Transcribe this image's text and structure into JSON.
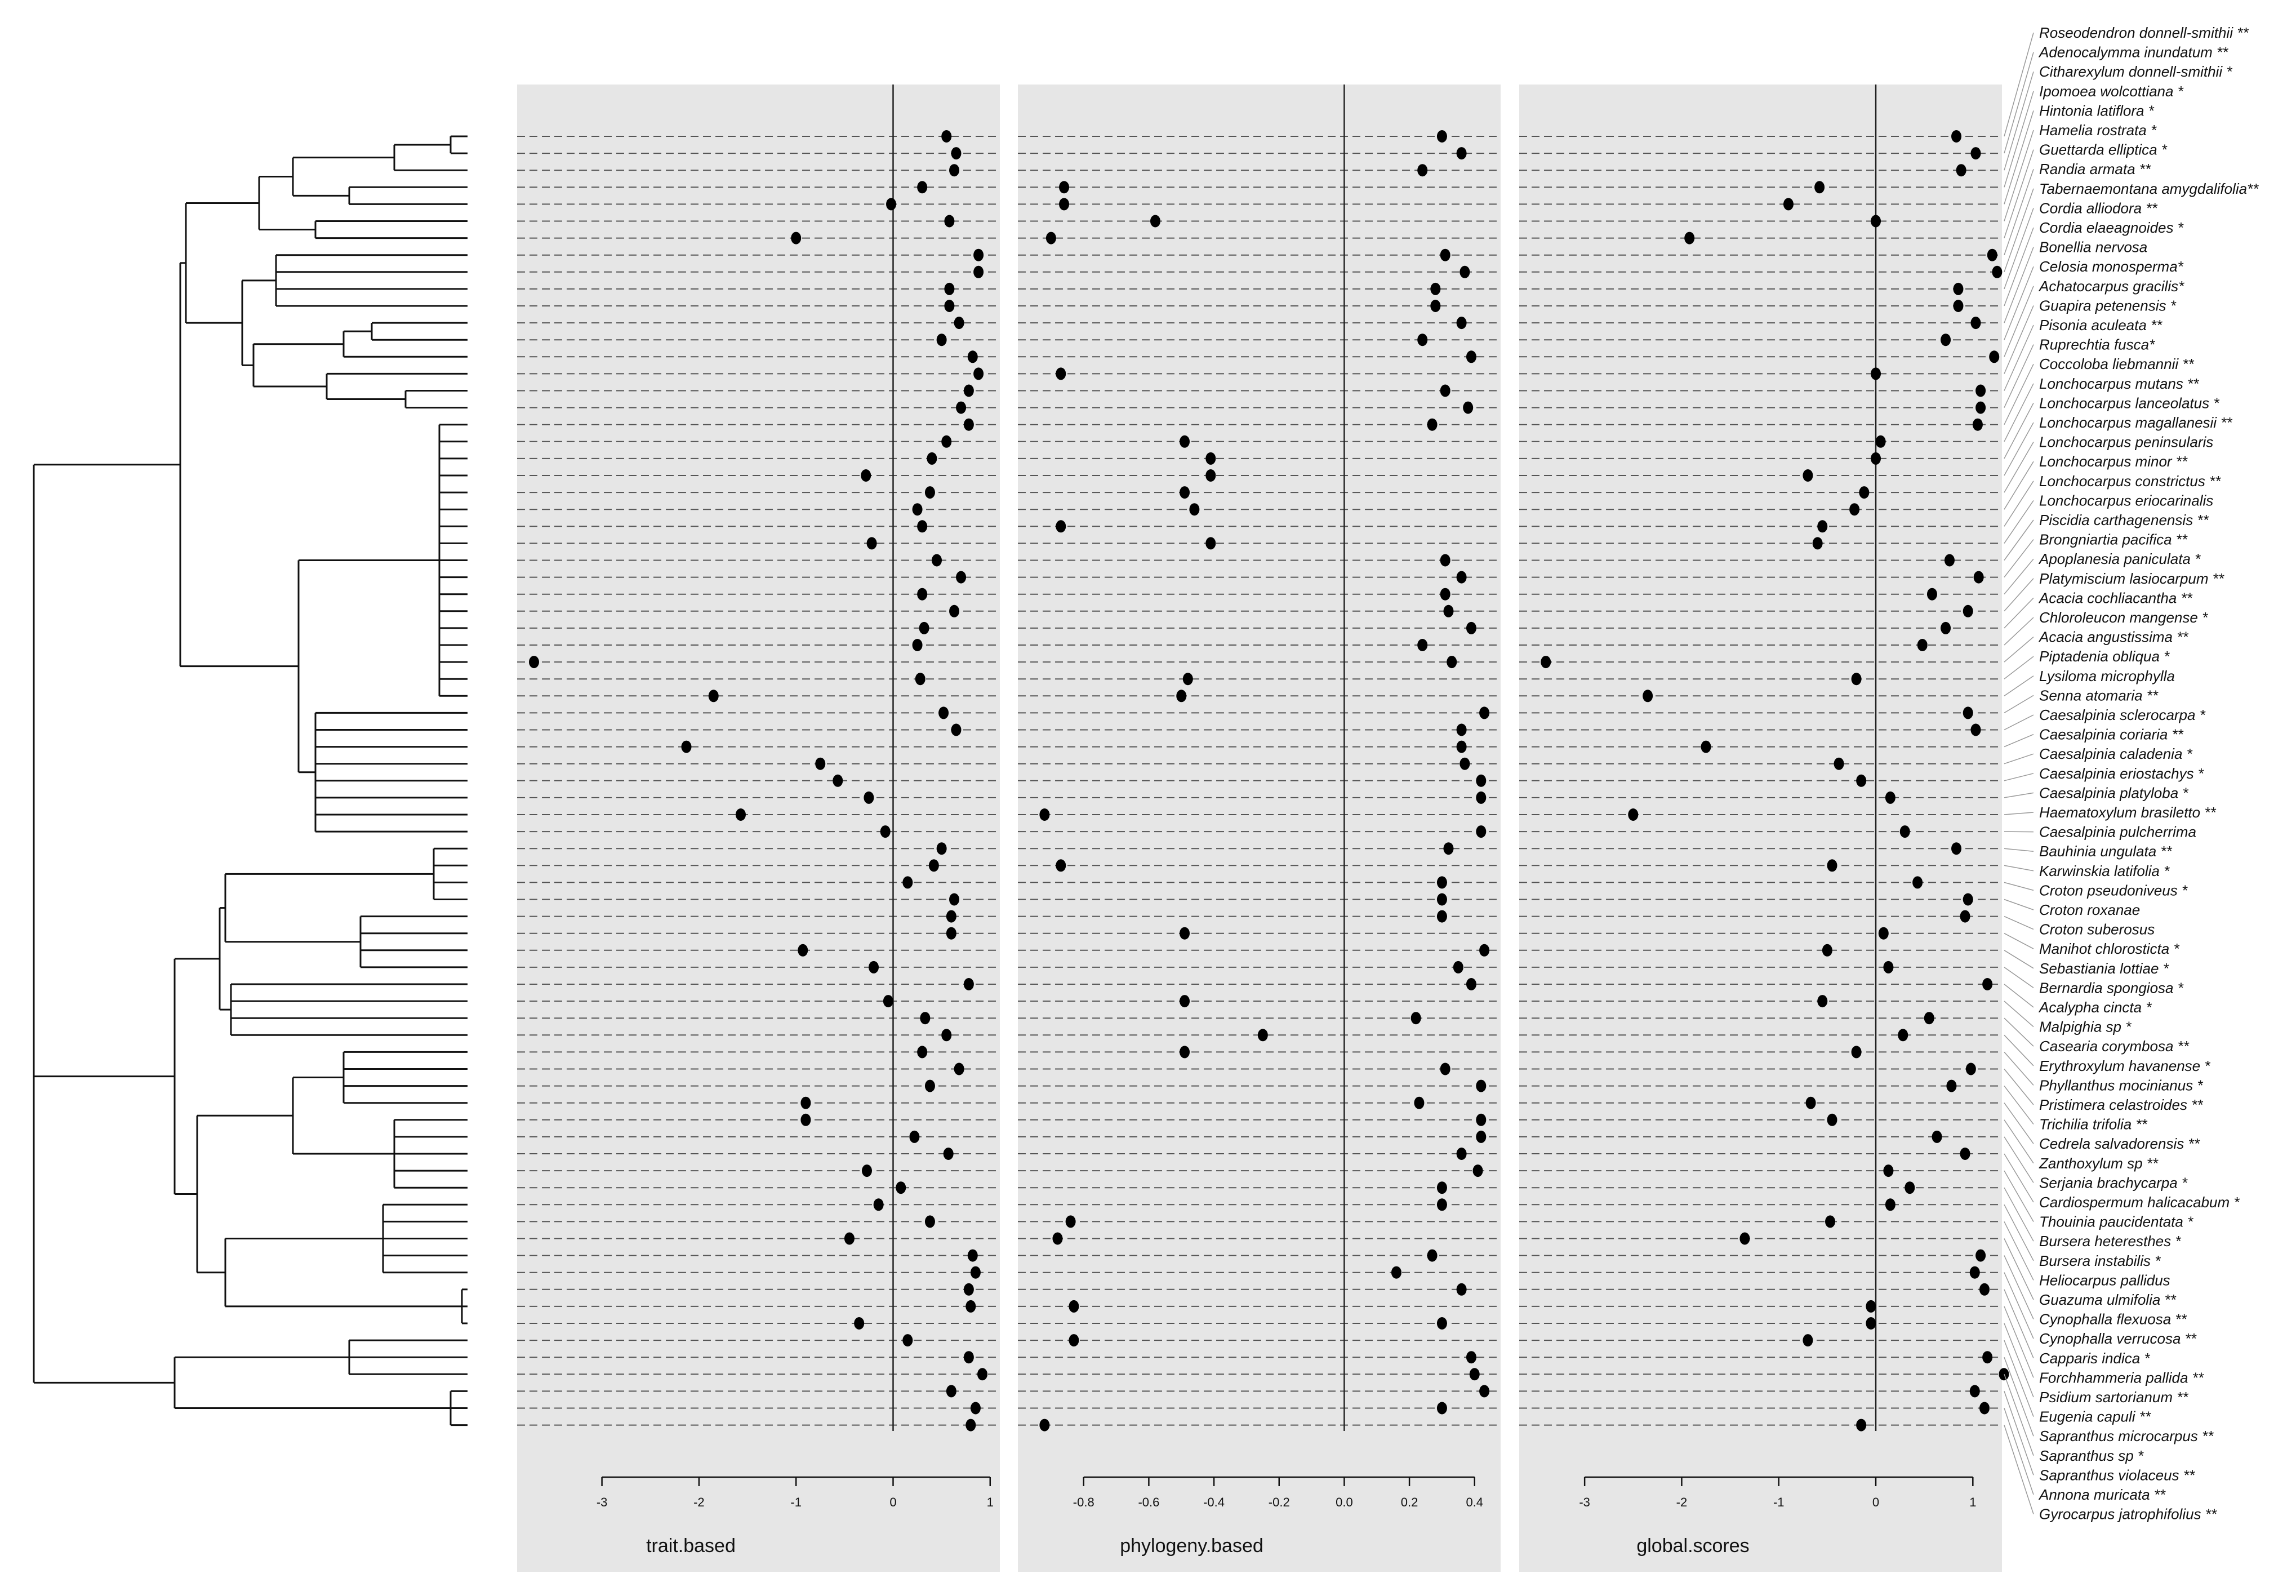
{
  "chart_data": {
    "type": "scatter",
    "species": [
      "Roseodendron donnell-smithii **",
      "Adenocalymma inundatum **",
      "Citharexylum donnell-smithii *",
      "Ipomoea wolcottiana *",
      "Hintonia latiflora *",
      "Hamelia rostrata *",
      "Guettarda elliptica *",
      "Randia armata **",
      "Tabernaemontana amygdalifolia**",
      "Cordia alliodora **",
      "Cordia elaeagnoides *",
      "Bonellia nervosa",
      "Celosia monosperma*",
      "Achatocarpus gracilis*",
      "Guapira petenensis *",
      "Pisonia aculeata **",
      "Ruprechtia fusca*",
      "Coccoloba liebmannii **",
      "Lonchocarpus mutans **",
      "Lonchocarpus lanceolatus *",
      "Lonchocarpus magallanesii **",
      "Lonchocarpus peninsularis",
      "Lonchocarpus minor **",
      "Lonchocarpus constrictus **",
      "Lonchocarpus eriocarinalis",
      "Piscidia carthagenensis **",
      "Brongniartia pacifica **",
      "Apoplanesia paniculata *",
      "Platymiscium lasiocarpum **",
      "Acacia cochliacantha **",
      "Chloroleucon mangense *",
      "Acacia angustissima **",
      "Piptadenia obliqua *",
      "Lysiloma microphylla",
      "Senna atomaria **",
      "Caesalpinia sclerocarpa *",
      "Caesalpinia coriaria **",
      "Caesalpinia caladenia *",
      "Caesalpinia eriostachys *",
      "Caesalpinia platyloba *",
      "Haematoxylum brasiletto **",
      "Caesalpinia pulcherrima",
      "Bauhinia ungulata **",
      "Karwinskia latifolia *",
      "Croton pseudoniveus *",
      "Croton roxanae",
      "Croton suberosus",
      "Manihot chlorosticta *",
      "Sebastiania lottiae *",
      "Bernardia spongiosa *",
      "Acalypha cincta *",
      "Malpighia sp *",
      "Casearia corymbosa **",
      "Erythroxylum havanense *",
      "Phyllanthus mocinianus *",
      "Pristimera celastroides **",
      "Trichilia trifolia **",
      "Cedrela salvadorensis **",
      "Zanthoxylum sp **",
      "Serjania brachycarpa *",
      "Cardiospermum halicacabum *",
      "Thouinia paucidentata *",
      "Bursera heteresthes *",
      "Bursera instabilis *",
      "Heliocarpus pallidus",
      "Guazuma ulmifolia **",
      "Cynophalla flexuosa **",
      "Cynophalla verrucosa **",
      "Capparis indica *",
      "Forchhammeria pallida **",
      "Psidium sartorianum **",
      "Eugenia capuli **",
      "Sapranthus microcarpus **",
      "Sapranthus sp *",
      "Sapranthus violaceus **",
      "Annona muricata **",
      "Gyrocarpus jatrophifolius **"
    ],
    "panels": [
      {
        "xlabel": "trait.based",
        "xlim": [
          -3.7,
          1.1
        ],
        "ticks": [
          "-3",
          "-2",
          "-1",
          "0",
          "1"
        ],
        "values": [
          0.55,
          0.65,
          0.63,
          0.3,
          -0.02,
          0.58,
          -1.0,
          0.88,
          0.88,
          0.58,
          0.58,
          0.68,
          0.5,
          0.82,
          0.88,
          0.78,
          0.7,
          0.78,
          0.55,
          0.4,
          -0.28,
          0.38,
          0.25,
          0.3,
          -0.22,
          0.45,
          0.7,
          0.3,
          0.63,
          0.32,
          0.25,
          -3.7,
          0.28,
          -1.85,
          0.52,
          0.65,
          -2.13,
          -0.75,
          -0.57,
          -0.25,
          -1.57,
          -0.08,
          0.5,
          0.42,
          0.15,
          0.63,
          0.6,
          0.6,
          -0.93,
          -0.2,
          0.78,
          -0.05,
          0.33,
          0.55,
          0.3,
          0.68,
          0.38,
          -0.9,
          -0.9,
          0.22,
          0.57,
          -0.27,
          0.08,
          -0.15,
          0.38,
          -0.45,
          0.82,
          0.85,
          0.78,
          0.8,
          -0.35,
          0.15,
          0.78,
          0.92,
          0.6,
          0.85,
          0.8
        ]
      },
      {
        "xlabel": "phylogeny.based",
        "xlim": [
          -0.95,
          0.48
        ],
        "ticks": [
          "-0.8",
          "-0.6",
          "-0.4",
          "-0.2",
          "0.0",
          "0.2",
          "0.4"
        ],
        "values": [
          0.3,
          0.36,
          0.24,
          -0.86,
          -0.86,
          -0.58,
          -0.9,
          0.31,
          0.37,
          0.28,
          0.28,
          0.36,
          0.24,
          0.39,
          -0.87,
          0.31,
          0.38,
          0.27,
          -0.49,
          -0.41,
          -0.41,
          -0.49,
          -0.46,
          -0.87,
          -0.41,
          0.31,
          0.36,
          0.31,
          0.32,
          0.39,
          0.24,
          0.33,
          -0.48,
          -0.5,
          0.43,
          0.36,
          0.36,
          0.37,
          0.42,
          0.42,
          -0.92,
          0.42,
          0.32,
          -0.87,
          0.3,
          0.3,
          0.3,
          -0.49,
          0.43,
          0.35,
          0.39,
          -0.49,
          0.22,
          -0.25,
          -0.49,
          0.31,
          0.42,
          0.23,
          0.42,
          0.42,
          0.36,
          0.41,
          0.3,
          0.3,
          -0.84,
          -0.88,
          0.27,
          0.16,
          0.36,
          -0.83,
          0.3,
          -0.83,
          0.39,
          0.4,
          0.43,
          0.3,
          -0.92
        ]
      },
      {
        "xlabel": "global.scores",
        "xlim": [
          -3.5,
          1.3
        ],
        "ticks": [
          "-3",
          "-2",
          "-1",
          "0",
          "1"
        ],
        "values": [
          0.83,
          1.03,
          0.88,
          -0.58,
          -0.9,
          0.0,
          -1.92,
          1.2,
          1.25,
          0.85,
          0.85,
          1.03,
          0.72,
          1.22,
          0.0,
          1.08,
          1.08,
          1.05,
          0.05,
          0.0,
          -0.7,
          -0.12,
          -0.22,
          -0.55,
          -0.6,
          0.76,
          1.06,
          0.58,
          0.95,
          0.72,
          0.48,
          -3.4,
          -0.2,
          -2.35,
          0.95,
          1.03,
          -1.75,
          -0.38,
          -0.15,
          0.15,
          -2.5,
          0.3,
          0.83,
          -0.45,
          0.43,
          0.95,
          0.92,
          0.08,
          -0.5,
          0.13,
          1.15,
          -0.55,
          0.55,
          0.28,
          -0.2,
          0.98,
          0.78,
          -0.67,
          -0.45,
          0.63,
          0.92,
          0.13,
          0.35,
          0.15,
          -0.47,
          -1.35,
          1.08,
          1.02,
          1.12,
          -0.05,
          -0.05,
          -0.7,
          1.15,
          1.32,
          1.02,
          1.12,
          -0.15
        ]
      }
    ]
  }
}
